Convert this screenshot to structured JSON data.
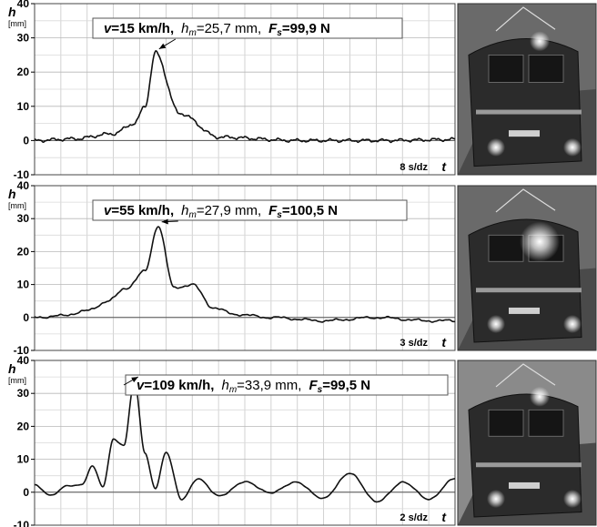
{
  "chart_data": [
    {
      "type": "line",
      "ylabel": "h",
      "yunit": "[mm]",
      "ylim": [
        -10,
        40
      ],
      "yticks": [
        -10,
        0,
        10,
        20,
        30,
        40
      ],
      "xlabel": "t",
      "time_scale": "8 s/dz",
      "grid": true,
      "annotation": {
        "v": "v=15 km/h,",
        "hm_label": "h",
        "hm_sub": "m",
        "hm_value": "=25,7 mm,",
        "fs_label": "F",
        "fs_sub": "s",
        "fs_value": "=99,9 N"
      },
      "photo": "locomotive-photo",
      "series": [
        {
          "x": [
            0,
            1.5,
            3,
            3.8,
            4.2,
            4.6,
            5.5,
            7,
            10,
            13,
            16
          ],
          "y": [
            0,
            0.5,
            2,
            5,
            10,
            25.7,
            8,
            1,
            0,
            0,
            0.3
          ]
        }
      ]
    },
    {
      "type": "line",
      "ylabel": "h",
      "yunit": "[mm]",
      "ylim": [
        -10,
        40
      ],
      "yticks": [
        -10,
        0,
        10,
        20,
        30,
        40
      ],
      "xlabel": "t",
      "time_scale": "3 s/dz",
      "grid": true,
      "annotation": {
        "v": "v=55 km/h,",
        "hm_label": "h",
        "hm_sub": "m",
        "hm_value": "=27,9 mm,",
        "fs_label": "F",
        "fs_sub": "s",
        "fs_value": "=100,5 N"
      },
      "photo": "locomotive-photo",
      "series": [
        {
          "x": [
            0,
            1,
            2,
            2.8,
            3.5,
            4.2,
            4.7,
            5.3,
            6,
            6.8,
            7.6,
            9,
            11,
            13,
            15,
            16
          ],
          "y": [
            0,
            0.5,
            2,
            5,
            9,
            14,
            27.9,
            9,
            10,
            3,
            1,
            0,
            -1,
            0,
            -1,
            -1
          ]
        }
      ]
    },
    {
      "type": "line",
      "ylabel": "h",
      "yunit": "[mm]",
      "ylim": [
        -10,
        40
      ],
      "yticks": [
        -10,
        0,
        10,
        20,
        30,
        40
      ],
      "xlabel": "t",
      "time_scale": "2 s/dz",
      "grid": true,
      "annotation": {
        "v": "v=109 km/h,",
        "hm_label": "h",
        "hm_sub": "m",
        "hm_value": "=33,9 mm,",
        "fs_label": "F",
        "fs_sub": "s",
        "fs_value": "=99,5 N"
      },
      "photo": "locomotive-photo",
      "series": [
        {
          "x": [
            0,
            0.6,
            1.2,
            1.8,
            2.2,
            2.6,
            3.0,
            3.4,
            3.8,
            4.2,
            4.6,
            5.0,
            5.6,
            6.2,
            7,
            8,
            9,
            10,
            11,
            12,
            13,
            14,
            15,
            16
          ],
          "y": [
            2,
            -1,
            2,
            2,
            8,
            2,
            16,
            14,
            33.9,
            12,
            1,
            12,
            -2,
            4,
            -1,
            3,
            0,
            3,
            -2,
            6,
            -3,
            3,
            -2,
            4
          ]
        }
      ]
    }
  ]
}
